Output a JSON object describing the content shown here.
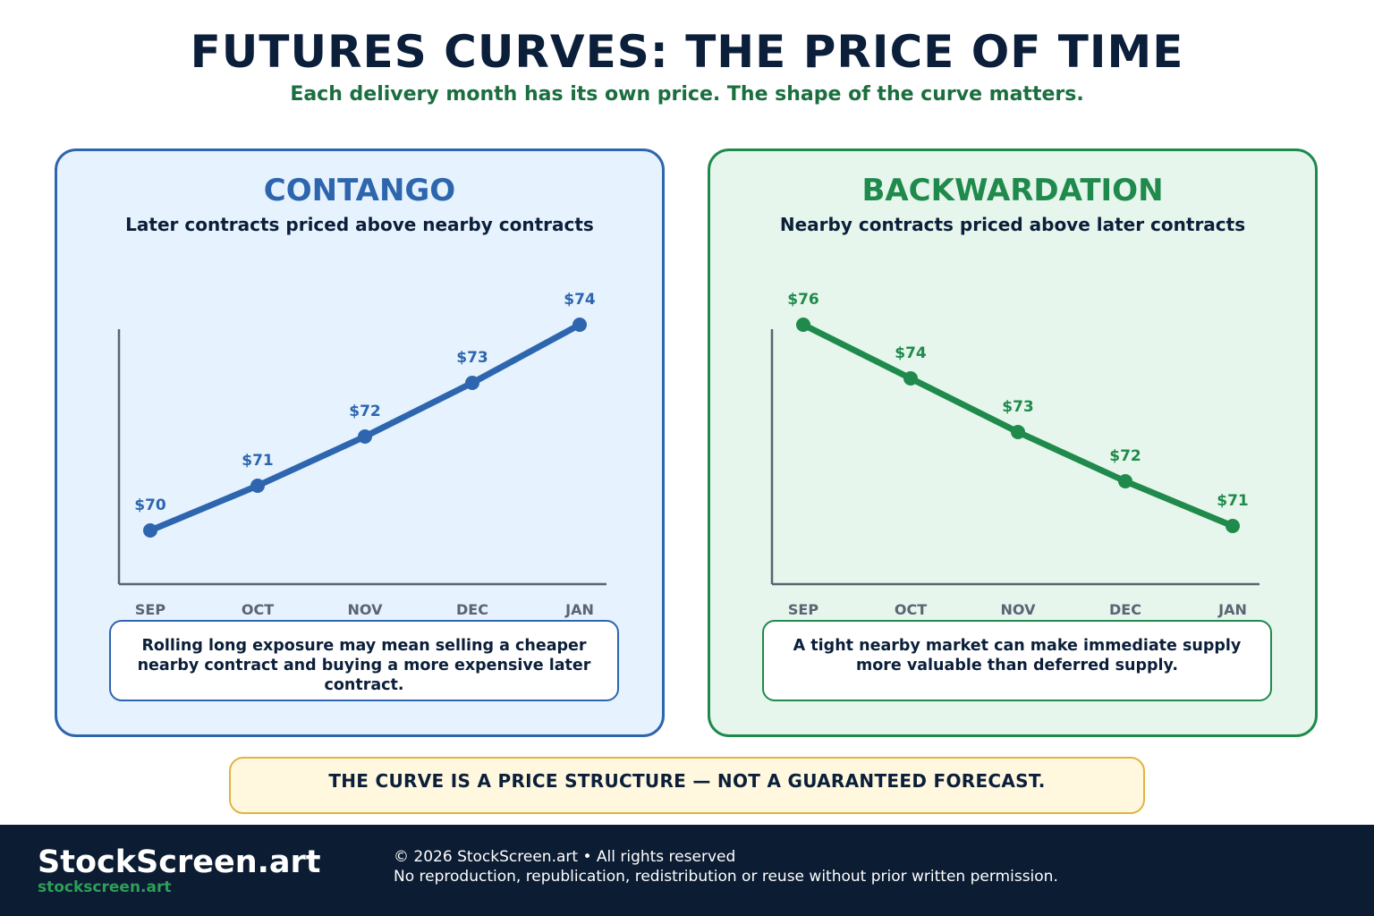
{
  "header": {
    "title": "FUTURES CURVES: THE PRICE OF TIME",
    "subtitle": "Each delivery month has its own price. The shape of the curve matters."
  },
  "colors": {
    "contango": "#2d66ae",
    "backwardation": "#1f8a4c",
    "axis": "#5a6472",
    "navy": "#0b1f3a"
  },
  "panels": {
    "contango": {
      "title": "CONTANGO",
      "subtitle": "Later contracts priced above nearby contracts",
      "note": "Rolling long exposure may mean selling a cheaper nearby contract and buying a more expensive later contract."
    },
    "backwardation": {
      "title": "BACKWARDATION",
      "subtitle": "Nearby contracts priced above later contracts",
      "note": "A tight nearby market can make immediate supply more valuable than deferred supply."
    }
  },
  "chart_data": [
    {
      "type": "line",
      "title": "CONTANGO",
      "categories": [
        "SEP",
        "OCT",
        "NOV",
        "DEC",
        "JAN"
      ],
      "values": [
        70,
        71,
        72,
        73,
        74
      ],
      "labels": [
        "$70",
        "$71",
        "$72",
        "$73",
        "$74"
      ],
      "color": "#2d66ae"
    },
    {
      "type": "line",
      "title": "BACKWARDATION",
      "categories": [
        "SEP",
        "OCT",
        "NOV",
        "DEC",
        "JAN"
      ],
      "values": [
        76,
        74,
        73,
        72,
        71
      ],
      "labels": [
        "$76",
        "$74",
        "$73",
        "$72",
        "$71"
      ],
      "color": "#1f8a4c"
    }
  ],
  "banner": {
    "text": "THE CURVE IS A PRICE STRUCTURE — NOT A GUARANTEED FORECAST."
  },
  "footer": {
    "brand": "StockScreen.art",
    "url": "stockscreen.art",
    "copyright": "© 2026 StockScreen.art • All rights reserved",
    "notice": "No reproduction, republication, redistribution or reuse without prior written permission."
  }
}
